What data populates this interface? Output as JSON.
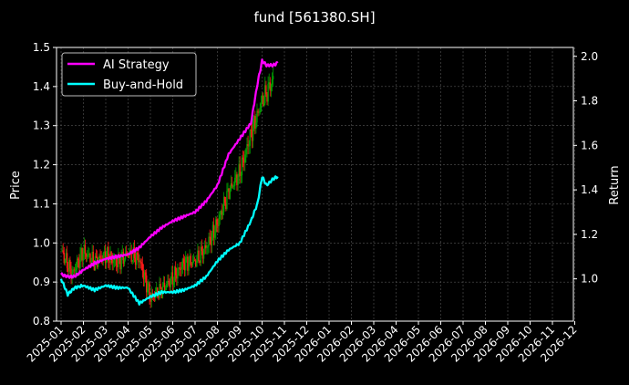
{
  "chart_data": {
    "type": "line",
    "title": "fund [561380.SH]",
    "ylabel_left": "Price",
    "ylabel_right": "Return",
    "ylim_left": [
      0.8,
      1.5
    ],
    "ylim_right": [
      0.81,
      2.04
    ],
    "yticks_left": [
      "0.8",
      "0.9",
      "1.0",
      "1.1",
      "1.2",
      "1.3",
      "1.4",
      "1.5"
    ],
    "yticks_right": [
      "1.0",
      "1.2",
      "1.4",
      "1.6",
      "1.8",
      "2.0"
    ],
    "xticks": [
      "2025-01",
      "2025-02",
      "2025-03",
      "2025-04",
      "2025-05",
      "2025-06",
      "2025-07",
      "2025-08",
      "2025-09",
      "2025-10",
      "2025-11",
      "2025-12",
      "2026-01",
      "2026-02",
      "2026-03",
      "2026-04",
      "2026-05",
      "2026-06",
      "2026-07",
      "2026-08",
      "2026-09",
      "2026-10",
      "2026-11",
      "2026-12"
    ],
    "grid": true,
    "legend_position": "top-left",
    "colors": {
      "background": "#000000",
      "up_candle": "#00a000",
      "down_candle": "#ff1a1a",
      "ai": "#ff00ff",
      "bh": "#00ffff",
      "grid": "#555555",
      "axes": "#ffffff"
    },
    "price": {
      "months": [
        0,
        0.5,
        1,
        1.5,
        2,
        2.5,
        3,
        3.5,
        4,
        4.5,
        5,
        5.5,
        6,
        6.5,
        7,
        7.5,
        8,
        8.5,
        9,
        9.5
      ],
      "values": [
        0.98,
        0.92,
        0.98,
        0.95,
        0.97,
        0.95,
        0.97,
        0.96,
        0.86,
        0.88,
        0.91,
        0.95,
        0.95,
        0.99,
        1.05,
        1.13,
        1.18,
        1.28,
        1.36,
        1.42
      ]
    },
    "series": [
      {
        "name": "AI Strategy",
        "months": [
          0,
          0.3,
          0.6,
          1,
          1.5,
          2,
          2.5,
          3,
          3.5,
          4,
          4.5,
          5,
          5.5,
          6,
          6.5,
          7,
          7.5,
          8,
          8.5,
          8.8,
          9,
          9.2,
          9.5,
          9.7
        ],
        "values": [
          1.02,
          1.01,
          1.01,
          1.04,
          1.07,
          1.09,
          1.1,
          1.11,
          1.14,
          1.19,
          1.23,
          1.26,
          1.28,
          1.3,
          1.35,
          1.42,
          1.56,
          1.63,
          1.7,
          1.88,
          1.98,
          1.96,
          1.96,
          1.97
        ]
      },
      {
        "name": "Buy-and-Hold",
        "months": [
          0,
          0.3,
          0.6,
          1,
          1.5,
          2,
          2.5,
          3,
          3.5,
          4,
          4.5,
          5,
          5.5,
          6,
          6.5,
          7,
          7.5,
          8,
          8.5,
          8.8,
          9,
          9.2,
          9.5,
          9.7
        ],
        "values": [
          1.0,
          0.93,
          0.96,
          0.97,
          0.95,
          0.97,
          0.96,
          0.96,
          0.89,
          0.92,
          0.94,
          0.94,
          0.95,
          0.97,
          1.01,
          1.08,
          1.13,
          1.16,
          1.26,
          1.34,
          1.46,
          1.42,
          1.45,
          1.46
        ]
      }
    ]
  }
}
